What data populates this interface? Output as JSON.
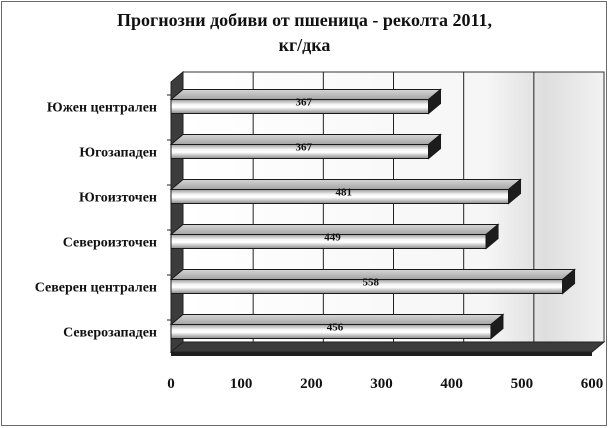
{
  "chart_data": {
    "type": "bar",
    "orientation": "horizontal",
    "title_lines": [
      "Прогнозни добиви от пшеница - реколта 2011,",
      "кг/дка"
    ],
    "categories": [
      "Южен централен",
      "Югозападен",
      "Югоизточен",
      "Североизточен",
      "Северен централен",
      "Северозападен"
    ],
    "values": [
      367,
      367,
      481,
      449,
      558,
      456
    ],
    "data_labels": [
      "367",
      "367",
      "481",
      "449",
      "558",
      "456"
    ],
    "x_ticks": [
      0,
      100,
      200,
      300,
      400,
      500,
      600
    ],
    "x_tick_labels": [
      "0",
      "100",
      "200",
      "300",
      "400",
      "500",
      "600"
    ],
    "xlim": [
      0,
      600
    ],
    "xlabel": "",
    "ylabel": "",
    "grid": true,
    "legend": "none",
    "style": "3d",
    "bar_color": "#d2d2d2",
    "wall_color": "#f0f0f0",
    "floor_color": "#3c3c3c"
  }
}
